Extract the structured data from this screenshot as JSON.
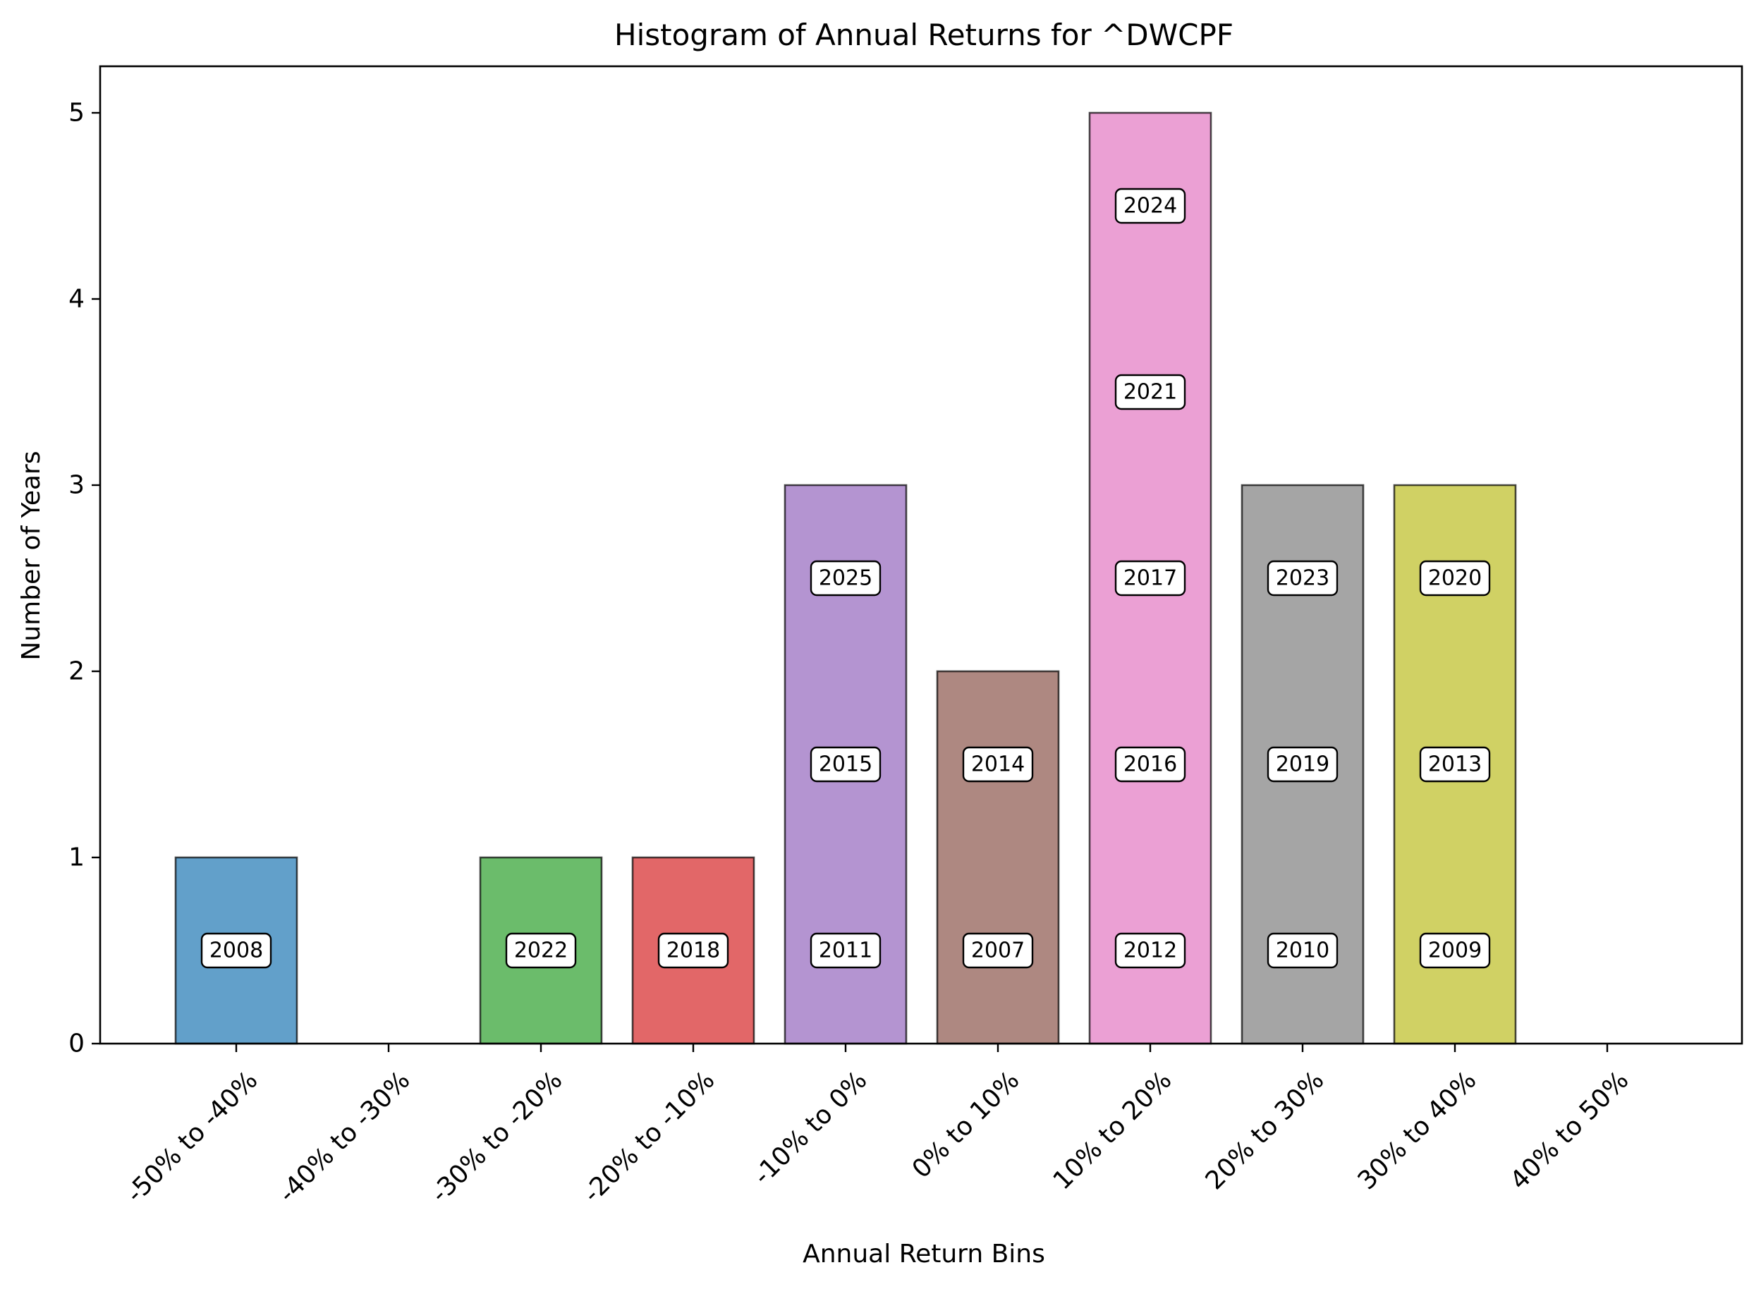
{
  "chart_data": {
    "type": "bar",
    "title": "Histogram of Annual Returns for ^DWCPF",
    "xlabel": "Annual Return Bins",
    "ylabel": "Number of Years",
    "ylim": [
      0,
      5.25
    ],
    "yticks": [
      0,
      1,
      2,
      3,
      4,
      5
    ],
    "grid": false,
    "categories": [
      "-50% to -40%",
      "-40% to -30%",
      "-30% to -20%",
      "-20% to -10%",
      "-10% to 0%",
      "0% to 10%",
      "10% to 20%",
      "20% to 30%",
      "30% to 40%",
      "40% to 50%"
    ],
    "values": [
      1,
      0,
      1,
      1,
      3,
      2,
      5,
      3,
      3,
      0
    ],
    "year_labels": [
      [
        "2008"
      ],
      [],
      [
        "2022"
      ],
      [
        "2018"
      ],
      [
        "2011",
        "2015",
        "2025"
      ],
      [
        "2007",
        "2014"
      ],
      [
        "2012",
        "2016",
        "2017",
        "2021",
        "2024"
      ],
      [
        "2010",
        "2019",
        "2023"
      ],
      [
        "2009",
        "2013",
        "2020"
      ],
      []
    ],
    "colors": [
      "#1f77b4",
      "#ff7f0e",
      "#2ca02c",
      "#d62728",
      "#9467bd",
      "#8c564b",
      "#e377c2",
      "#7f7f7f",
      "#bcbd22",
      "#17becf"
    ]
  }
}
